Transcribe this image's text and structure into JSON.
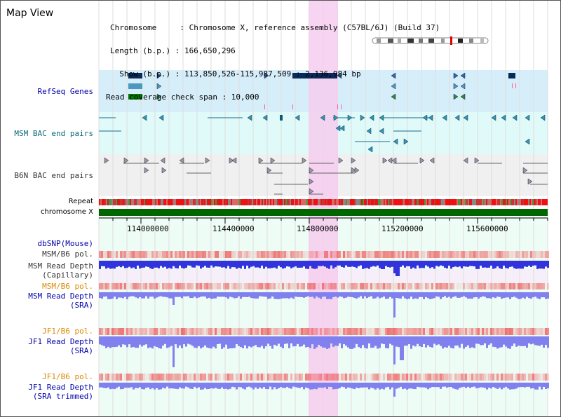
{
  "window": {
    "title": "Map View"
  },
  "header": {
    "lines": [
      "Chromosome     : Chromosome X, reference assembly (C57BL/6J) (Build 37)",
      "Length (b.p.) : 166,650,296",
      "  Show (b.p.) : 113,850,526-115,987,509 : 2,136,984 bp",
      "Read coverage check span : 10,000"
    ]
  },
  "tracks": {
    "refseq": "RefSeq Genes",
    "msm_bac": "MSM BAC end pairs",
    "b6n_bac": "B6N BAC end pairs",
    "repeat": "Repeat",
    "chromosome": "chromosome X",
    "dbsnp": "dbSNP(Mouse)",
    "msm_b6_pol_1": "MSM/B6 pol.",
    "msm_read_depth_cap_1": "MSM Read Depth",
    "msm_read_depth_cap_2": "(Capillary)",
    "msm_b6_pol_2": "MSM/B6 pol.",
    "msm_read_depth_sra_1": "MSM Read Depth",
    "msm_read_depth_sra_2": "(SRA)",
    "jf1_b6_pol_1": "JF1/B6 pol.",
    "jf1_read_depth_sra_1": "JF1 Read Depth",
    "jf1_read_depth_sra_2": "(SRA)",
    "jf1_b6_pol_2": "JF1/B6 pol.",
    "jf1_read_depth_trim_1": "JF1 Read Depth",
    "jf1_read_depth_trim_2": "(SRA trimmed)"
  },
  "axis": {
    "ticks": [
      "114000000",
      "114400000",
      "114800000",
      "115200000",
      "115600000"
    ]
  },
  "colors": {
    "refseq_bg": "#d6eefa",
    "msm_bg": "#dffaf8",
    "b6n_bg": "#f0f0f0",
    "highlight": "#f6cdee",
    "chrom_green": "#006600",
    "depth_blue": "#3333dd",
    "depth_light": "#8080ee",
    "pol_red": "#ee5555"
  }
}
